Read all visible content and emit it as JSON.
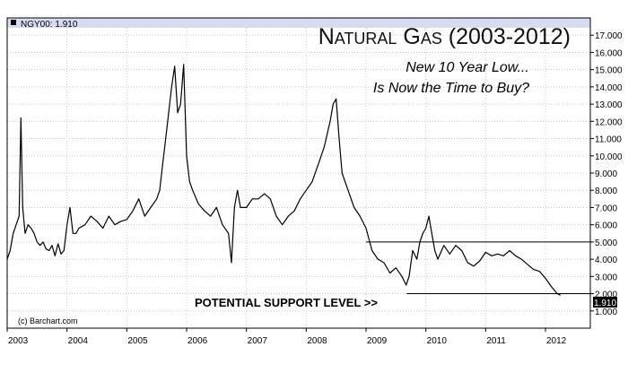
{
  "header": {
    "ticker_label": "NGY00: 1.910"
  },
  "chart_data": {
    "type": "line",
    "title": "Natural Gas (2003-2012)",
    "subtitle_lines": [
      "New 10 Year Low...",
      "Is Now the Time to Buy?"
    ],
    "annotation": "POTENTIAL SUPPORT LEVEL >>",
    "copyright": "(c) Barchart.com",
    "last_value_label": "1.910",
    "x_tick_labels": [
      "2003",
      "2004",
      "2005",
      "2006",
      "2007",
      "2008",
      "2009",
      "2010",
      "2011",
      "2012"
    ],
    "y_tick_labels": [
      "1.000",
      "2.000",
      "3.000",
      "4.000",
      "5.000",
      "6.000",
      "7.000",
      "8.000",
      "9.000",
      "10.000",
      "11.000",
      "12.000",
      "13.000",
      "14.000",
      "15.000",
      "16.000",
      "17.000"
    ],
    "xlim": [
      2003.0,
      2012.75
    ],
    "ylim": [
      0.0,
      18.0
    ],
    "grid": true,
    "series": [
      {
        "x": [
          2003.0,
          2003.05,
          2003.1,
          2003.15,
          2003.2,
          2003.23,
          2003.26,
          2003.3,
          2003.35,
          2003.4,
          2003.45,
          2003.5,
          2003.55,
          2003.6,
          2003.65,
          2003.7,
          2003.75,
          2003.8,
          2003.85,
          2003.9,
          2003.95,
          2004.0,
          2004.05,
          2004.1,
          2004.15,
          2004.2,
          2004.3,
          2004.4,
          2004.5,
          2004.6,
          2004.7,
          2004.8,
          2004.9,
          2005.0,
          2005.1,
          2005.2,
          2005.3,
          2005.4,
          2005.5,
          2005.55,
          2005.6,
          2005.65,
          2005.7,
          2005.75,
          2005.8,
          2005.85,
          2005.9,
          2005.95,
          2006.0,
          2006.05,
          2006.1,
          2006.2,
          2006.3,
          2006.4,
          2006.5,
          2006.6,
          2006.7,
          2006.75,
          2006.8,
          2006.85,
          2006.9,
          2007.0,
          2007.1,
          2007.2,
          2007.3,
          2007.4,
          2007.5,
          2007.6,
          2007.7,
          2007.8,
          2007.9,
          2008.0,
          2008.1,
          2008.2,
          2008.3,
          2008.4,
          2008.45,
          2008.5,
          2008.55,
          2008.6,
          2008.7,
          2008.8,
          2008.9,
          2009.0,
          2009.1,
          2009.2,
          2009.3,
          2009.4,
          2009.5,
          2009.6,
          2009.67,
          2009.72,
          2009.78,
          2009.85,
          2009.9,
          2009.95,
          2010.0,
          2010.05,
          2010.1,
          2010.15,
          2010.2,
          2010.3,
          2010.4,
          2010.5,
          2010.6,
          2010.7,
          2010.8,
          2010.9,
          2011.0,
          2011.1,
          2011.2,
          2011.3,
          2011.4,
          2011.5,
          2011.6,
          2011.7,
          2011.8,
          2011.9,
          2012.0,
          2012.1,
          2012.2,
          2012.25
        ],
        "y": [
          4.0,
          4.5,
          5.5,
          6.0,
          6.5,
          12.2,
          7.0,
          5.5,
          6.0,
          5.8,
          5.5,
          5.0,
          4.8,
          5.0,
          4.6,
          4.5,
          4.8,
          4.2,
          4.9,
          4.3,
          4.5,
          6.0,
          7.0,
          5.5,
          5.5,
          5.8,
          6.0,
          6.5,
          6.2,
          5.8,
          6.5,
          6.0,
          6.2,
          6.3,
          6.8,
          7.5,
          6.5,
          7.0,
          7.5,
          8.0,
          9.5,
          11.0,
          12.5,
          14.0,
          15.2,
          12.5,
          13.0,
          15.3,
          10.0,
          8.5,
          8.0,
          7.2,
          6.8,
          6.5,
          7.0,
          6.0,
          5.5,
          3.8,
          7.0,
          8.0,
          7.0,
          7.0,
          7.5,
          7.5,
          7.8,
          7.5,
          6.5,
          6.0,
          6.5,
          6.8,
          7.5,
          8.0,
          8.5,
          9.5,
          10.5,
          12.0,
          13.0,
          13.3,
          11.0,
          9.0,
          8.0,
          7.0,
          6.5,
          5.8,
          4.5,
          4.0,
          3.8,
          3.2,
          3.5,
          3.0,
          2.5,
          3.0,
          4.5,
          4.0,
          5.0,
          5.5,
          5.8,
          6.5,
          5.5,
          4.5,
          4.0,
          4.8,
          4.3,
          4.8,
          4.5,
          3.8,
          3.6,
          3.9,
          4.4,
          4.2,
          4.3,
          4.2,
          4.5,
          4.2,
          4.0,
          3.7,
          3.4,
          3.3,
          2.9,
          2.4,
          2.0,
          1.91
        ]
      }
    ],
    "support_line": {
      "value": 2.0,
      "from_x": 2009.68,
      "to_x": 2012.75
    },
    "resistance_line": {
      "value": 5.0,
      "from_x": 2009.0,
      "to_x": 2012.75
    },
    "colors": {
      "header_band": "#d8dcf0",
      "line": "#000000",
      "grid": "#c8c8c8",
      "frame": "#000000",
      "text": "#000000"
    }
  }
}
